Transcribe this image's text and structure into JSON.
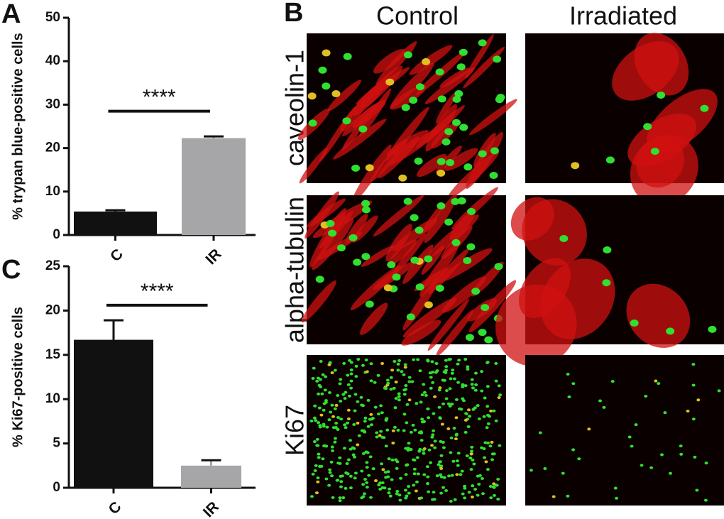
{
  "panel_labels": [
    "A",
    "B",
    "C"
  ],
  "image_panel": {
    "columns": [
      "Control",
      "Irradiated"
    ],
    "rows": [
      "caveolin-1",
      "alpha-tubulin",
      "Ki67"
    ]
  },
  "chart_data": [
    {
      "type": "bar",
      "ylabel": "% trypan blue-positive cells",
      "categories": [
        "C",
        "IR"
      ],
      "values": [
        5.4,
        22.3
      ],
      "errors": [
        0.3,
        0.4
      ],
      "colors": [
        "#111111",
        "#a6a6a8"
      ],
      "ylim": [
        0,
        50
      ],
      "yticks": [
        0,
        10,
        20,
        30,
        40,
        50
      ],
      "annotation": "****",
      "bracket_y": 28.5
    },
    {
      "type": "bar",
      "ylabel": "% Ki67-positive cells",
      "categories": [
        "C",
        "IR"
      ],
      "values": [
        16.7,
        2.5
      ],
      "errors": [
        2.2,
        0.6
      ],
      "colors": [
        "#111111",
        "#a6a6a8"
      ],
      "ylim": [
        0,
        25
      ],
      "yticks": [
        0,
        5,
        10,
        15,
        20,
        25
      ],
      "annotation": "****",
      "bracket_y": 20.6
    }
  ]
}
